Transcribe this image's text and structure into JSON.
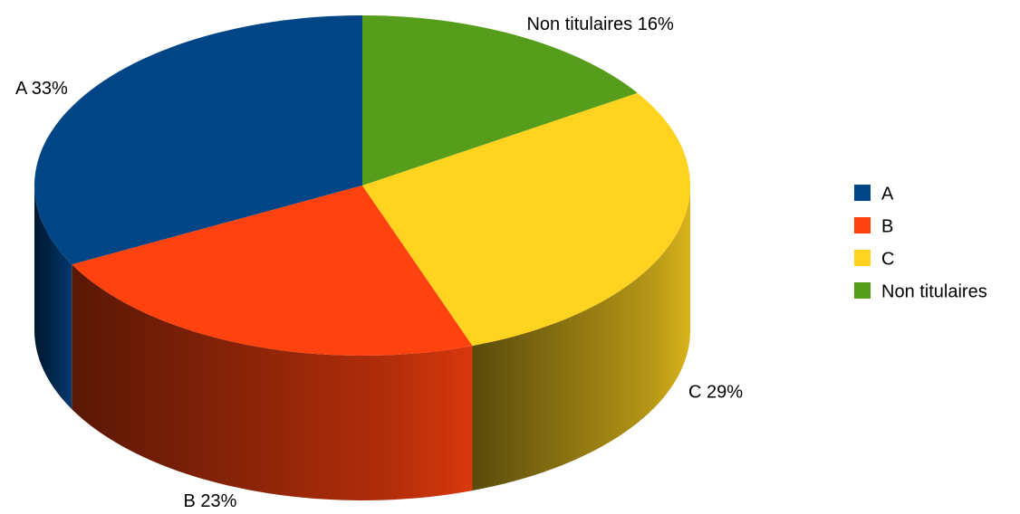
{
  "chart_data": {
    "type": "pie",
    "categories": [
      "A",
      "B",
      "C",
      "Non titulaires"
    ],
    "values": [
      33,
      23,
      29,
      16
    ],
    "value_labels": [
      "A 33%",
      "B 23%",
      "C 29%",
      "Non titulaires 16%"
    ],
    "colors": [
      "#004586",
      "#ff420e",
      "#ffd320",
      "#579d1c"
    ],
    "legend": "right"
  }
}
